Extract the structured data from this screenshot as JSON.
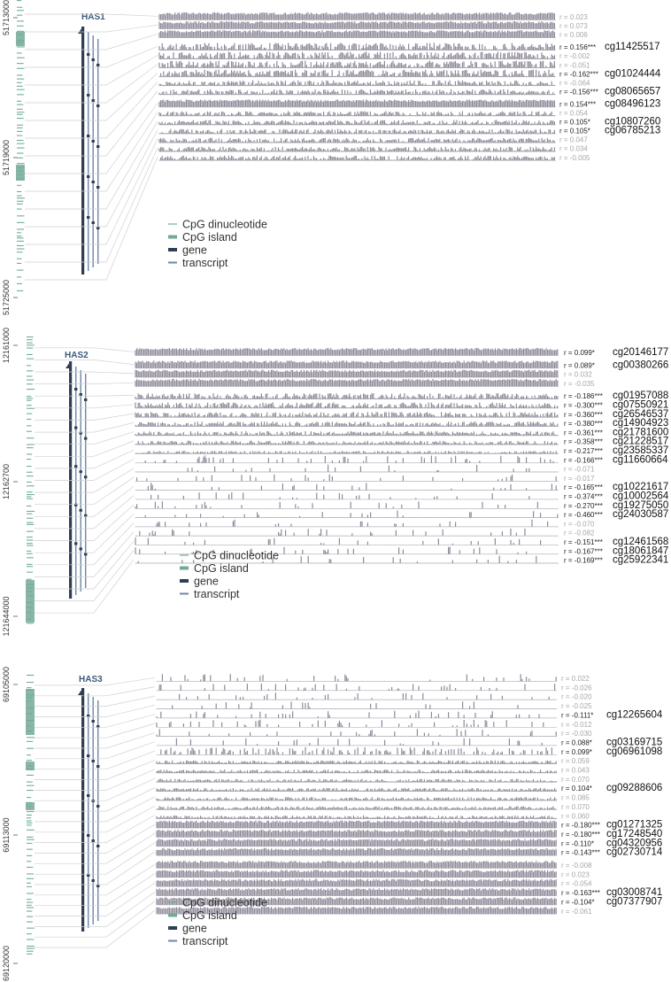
{
  "colors": {
    "cpg_dinucleotide": "#6fae98",
    "cpg_island": "#74a99a",
    "gene": "#2f3e52",
    "transcript": "#6d86a6",
    "track": "#8f8a99",
    "connector": "#d0d0d0",
    "r_significant": "#222222",
    "r_nonsignificant": "#a7a7a7"
  },
  "legend": {
    "cpg_dinucleotide": "CpG dinucleotide",
    "cpg_island": "CpG island",
    "gene": "gene",
    "transcript": "transcript"
  },
  "panels": [
    {
      "gene": "HAS1",
      "coords": [
        "51713000",
        "51719000",
        "51725000"
      ],
      "tracks": [
        {
          "r": "r = 0.023",
          "sig": false,
          "cg": "",
          "level": 0.9
        },
        {
          "r": "r = 0.073",
          "sig": false,
          "cg": "",
          "level": 0.9
        },
        {
          "r": "r = 0.006",
          "sig": false,
          "cg": "",
          "level": 0.9
        },
        {
          "r": "r = 0.156***",
          "sig": true,
          "cg": "cg11425517",
          "level": 0.75
        },
        {
          "r": "r = -0.002",
          "sig": false,
          "cg": "",
          "level": 0.75
        },
        {
          "r": "r = -0.051",
          "sig": false,
          "cg": "",
          "level": 0.75
        },
        {
          "r": "r = -0.162***",
          "sig": true,
          "cg": "cg01024444",
          "level": 0.75
        },
        {
          "r": "r = -0.064",
          "sig": false,
          "cg": "",
          "level": 0.55
        },
        {
          "r": "r = -0.156***",
          "sig": true,
          "cg": "cg08065657",
          "level": 0.55
        },
        {
          "r": "r = 0.154***",
          "sig": true,
          "cg": "cg08496123",
          "level": 0.85
        },
        {
          "r": "r = 0.054",
          "sig": false,
          "cg": "",
          "level": 0.5
        },
        {
          "r": "r = 0.105*",
          "sig": true,
          "cg": "cg10807260",
          "level": 0.5
        },
        {
          "r": "r = 0.105*",
          "sig": true,
          "cg": "cg06785213",
          "level": 0.5
        },
        {
          "r": "r = 0.047",
          "sig": false,
          "cg": "",
          "level": 0.5
        },
        {
          "r": "r = 0.034",
          "sig": false,
          "cg": "",
          "level": 0.5
        },
        {
          "r": "r = -0.005",
          "sig": false,
          "cg": "",
          "level": 0.5
        }
      ]
    },
    {
      "gene": "HAS2",
      "coords": [
        "12161000",
        "12162700",
        "121644000"
      ],
      "tracks": [
        {
          "r": "r = 0.099*",
          "sig": true,
          "cg": "cg20146177",
          "level": 0.9
        },
        {
          "r": "r = 0.089*",
          "sig": true,
          "cg": "cg00380266",
          "level": 0.9
        },
        {
          "r": "r = 0.032",
          "sig": false,
          "cg": "",
          "level": 0.9
        },
        {
          "r": "r = -0.035",
          "sig": false,
          "cg": "",
          "level": 0.9
        },
        {
          "r": "r = -0.186***",
          "sig": true,
          "cg": "cg01957088",
          "level": 0.6
        },
        {
          "r": "r = -0.300***",
          "sig": true,
          "cg": "cg07550921",
          "level": 0.6
        },
        {
          "r": "r = -0.360***",
          "sig": true,
          "cg": "cg26546537",
          "level": 0.55
        },
        {
          "r": "r = -0.380***",
          "sig": true,
          "cg": "cg14904923",
          "level": 0.5
        },
        {
          "r": "r = -0.361***",
          "sig": true,
          "cg": "cg21781600",
          "level": 0.45
        },
        {
          "r": "r = -0.358***",
          "sig": true,
          "cg": "cg21228517",
          "level": 0.4
        },
        {
          "r": "r = -0.217***",
          "sig": true,
          "cg": "cg23585337",
          "level": 0.3
        },
        {
          "r": "r = -0.166***",
          "sig": true,
          "cg": "cg11660664",
          "level": 0.08
        },
        {
          "r": "r = -0.071",
          "sig": false,
          "cg": "",
          "level": 0.04
        },
        {
          "r": "r = -0.017",
          "sig": false,
          "cg": "",
          "level": 0.04
        },
        {
          "r": "r = -0.165***",
          "sig": true,
          "cg": "cg10221617",
          "level": 0.04
        },
        {
          "r": "r = -0.374***",
          "sig": true,
          "cg": "cg10002564",
          "level": 0.04
        },
        {
          "r": "r = -0.270***",
          "sig": true,
          "cg": "cg19275050",
          "level": 0.04
        },
        {
          "r": "r = -0.460***",
          "sig": true,
          "cg": "cg24030587",
          "level": 0.04
        },
        {
          "r": "r = -0.070",
          "sig": false,
          "cg": "",
          "level": 0.04
        },
        {
          "r": "r = -0.082",
          "sig": false,
          "cg": "",
          "level": 0.04
        },
        {
          "r": "r = -0.151***",
          "sig": true,
          "cg": "cg12461568",
          "level": 0.04
        },
        {
          "r": "r = -0.167***",
          "sig": true,
          "cg": "cg18061847",
          "level": 0.04
        },
        {
          "r": "r = -0.169***",
          "sig": true,
          "cg": "cg25922341",
          "level": 0.04
        }
      ]
    },
    {
      "gene": "HAS3",
      "coords": [
        "69105000",
        "69113000",
        "69120000"
      ],
      "tracks": [
        {
          "r": "r = 0.022",
          "sig": false,
          "cg": "",
          "level": 0.06
        },
        {
          "r": "r = -0.026",
          "sig": false,
          "cg": "",
          "level": 0.06
        },
        {
          "r": "r = -0.020",
          "sig": false,
          "cg": "",
          "level": 0.06
        },
        {
          "r": "r = -0.025",
          "sig": false,
          "cg": "",
          "level": 0.06
        },
        {
          "r": "r = -0.111*",
          "sig": true,
          "cg": "cg12265604",
          "level": 0.06
        },
        {
          "r": "r = -0.012",
          "sig": false,
          "cg": "",
          "level": 0.06
        },
        {
          "r": "r = -0.030",
          "sig": false,
          "cg": "",
          "level": 0.06
        },
        {
          "r": "r = 0.088*",
          "sig": true,
          "cg": "cg03169715",
          "level": 0.06
        },
        {
          "r": "r = 0.099*",
          "sig": true,
          "cg": "cg06961098",
          "level": 0.2
        },
        {
          "r": "r = 0.059",
          "sig": false,
          "cg": "",
          "level": 0.35
        },
        {
          "r": "r = 0.043",
          "sig": false,
          "cg": "",
          "level": 0.35
        },
        {
          "r": "r = 0.070",
          "sig": false,
          "cg": "",
          "level": 0.35
        },
        {
          "r": "r = 0.104*",
          "sig": true,
          "cg": "cg09288606",
          "level": 0.35
        },
        {
          "r": "r = 0.085",
          "sig": false,
          "cg": "",
          "level": 0.35
        },
        {
          "r": "r = 0.070",
          "sig": false,
          "cg": "",
          "level": 0.35
        },
        {
          "r": "r = 0.060",
          "sig": false,
          "cg": "",
          "level": 0.35
        },
        {
          "r": "r = -0.180***",
          "sig": true,
          "cg": "cg01271325",
          "level": 0.95
        },
        {
          "r": "r = -0.180***",
          "sig": true,
          "cg": "cg17248540",
          "level": 0.95
        },
        {
          "r": "r = -0.110*",
          "sig": true,
          "cg": "cg04320956",
          "level": 0.95
        },
        {
          "r": "r = -0.143***",
          "sig": true,
          "cg": "cg02730714",
          "level": 0.95
        },
        {
          "r": "r = -0.008",
          "sig": false,
          "cg": "",
          "level": 0.9
        },
        {
          "r": "r = 0.023",
          "sig": false,
          "cg": "",
          "level": 0.85
        },
        {
          "r": "r = -0.054",
          "sig": false,
          "cg": "",
          "level": 0.85
        },
        {
          "r": "r = -0.163***",
          "sig": true,
          "cg": "cg03008741",
          "level": 0.85
        },
        {
          "r": "r = -0.104*",
          "sig": true,
          "cg": "cg07377907",
          "level": 0.85
        },
        {
          "r": "r = -0.061",
          "sig": false,
          "cg": "",
          "level": 0.85
        }
      ]
    }
  ]
}
